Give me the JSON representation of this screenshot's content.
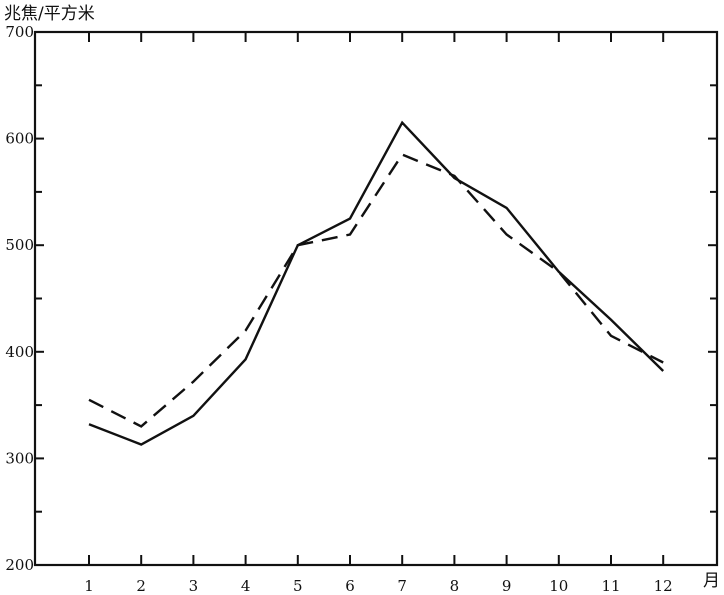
{
  "chart_data": {
    "type": "line",
    "title": "",
    "ylabel": "兆焦/平方米",
    "xlabel": "月",
    "x": [
      1,
      2,
      3,
      4,
      5,
      6,
      7,
      8,
      9,
      10,
      11,
      12
    ],
    "x_tick_labels": [
      "1",
      "2",
      "3",
      "4",
      "5",
      "6",
      "7",
      "8",
      "9",
      "10",
      "11",
      "12"
    ],
    "y_ticks": [
      200,
      300,
      400,
      500,
      600,
      700
    ],
    "y_tick_labels": [
      "200",
      "300",
      "400",
      "500",
      "600",
      "700"
    ],
    "ylim": [
      200,
      700
    ],
    "xlim": [
      0,
      13
    ],
    "grid": false,
    "legend": "none",
    "series": [
      {
        "style": "solid",
        "values": [
          332,
          313,
          340,
          393,
          500,
          525,
          615,
          563,
          535,
          475,
          430,
          382
        ]
      },
      {
        "style": "dashed",
        "values": [
          355,
          330,
          372,
          420,
          500,
          510,
          585,
          565,
          510,
          475,
          415,
          390
        ]
      }
    ],
    "colors": {
      "line": "#111111",
      "background": "#ffffff"
    }
  }
}
